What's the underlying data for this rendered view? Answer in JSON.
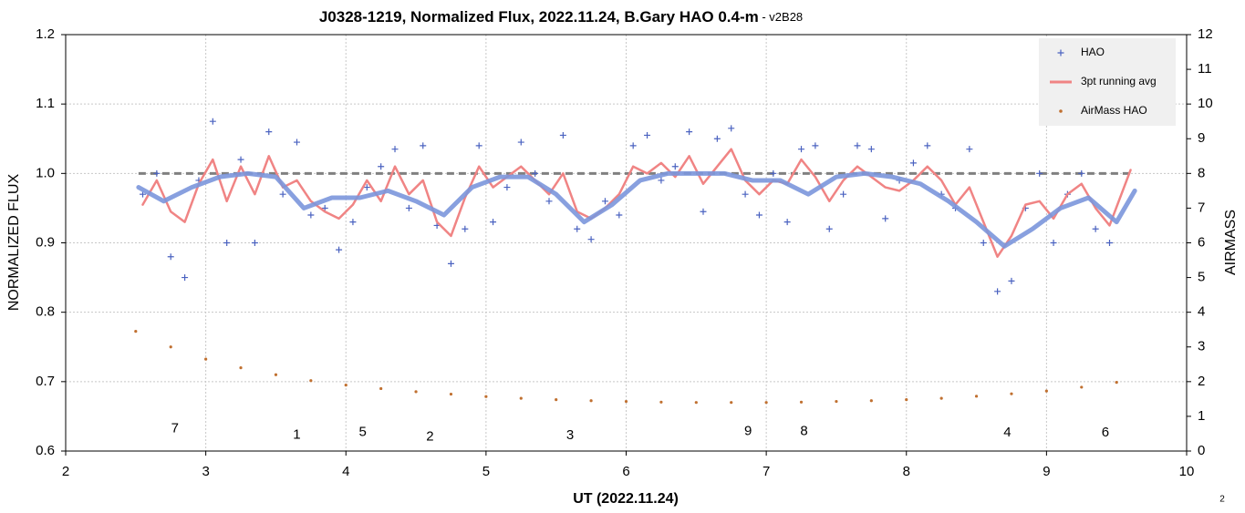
{
  "chart_data": {
    "type": "scatter",
    "title": "J0328-1219, Normalized Flux, 2022.11.24, B.Gary HAO 0.4-m",
    "subtitle": " - v2B28",
    "xlabel": "UT (2022.11.24)",
    "ylabel": "NORMALIZED FLUX",
    "y2label": "AIRMASS",
    "footnote": "2",
    "xlim": [
      2,
      10
    ],
    "xticks": [
      2,
      3,
      4,
      5,
      6,
      7,
      8,
      9,
      10
    ],
    "ylim": [
      0.6,
      1.2
    ],
    "yticks": [
      0.6,
      0.7,
      0.8,
      0.9,
      {
        "value": 1.0,
        "label": "1.0"
      },
      1.1,
      1.2
    ],
    "y2lim": [
      0,
      12
    ],
    "y2ticks": [
      0,
      1,
      2,
      3,
      4,
      5,
      6,
      7,
      8,
      9,
      10,
      11,
      12
    ],
    "grid": true,
    "legend": "upper right",
    "reference_line": {
      "value": 1.0,
      "color": "#808080"
    },
    "annotations": [
      {
        "text": "7",
        "x": 2.78,
        "y": 0.632
      },
      {
        "text": "1",
        "x": 3.65,
        "y": 0.623
      },
      {
        "text": "5",
        "x": 4.12,
        "y": 0.627
      },
      {
        "text": "2",
        "x": 4.6,
        "y": 0.62
      },
      {
        "text": "3",
        "x": 5.6,
        "y": 0.622
      },
      {
        "text": "9",
        "x": 6.87,
        "y": 0.628
      },
      {
        "text": "8",
        "x": 7.27,
        "y": 0.628
      },
      {
        "text": "4",
        "x": 8.72,
        "y": 0.626
      },
      {
        "text": "6",
        "x": 9.42,
        "y": 0.626
      }
    ],
    "series": [
      {
        "type": "line",
        "color": "#7b96dc",
        "x": [
          2.52,
          2.7,
          2.9,
          3.1,
          3.3,
          3.5,
          3.7,
          3.9,
          4.1,
          4.3,
          4.5,
          4.7,
          4.9,
          5.1,
          5.3,
          5.5,
          5.7,
          5.9,
          6.1,
          6.3,
          6.5,
          6.7,
          6.9,
          7.1,
          7.3,
          7.5,
          7.7,
          7.9,
          8.1,
          8.3,
          8.5,
          8.7,
          8.9,
          9.1,
          9.3,
          9.5,
          9.63
        ],
        "values": [
          0.98,
          0.96,
          0.98,
          0.995,
          1.0,
          0.995,
          0.95,
          0.965,
          0.965,
          0.975,
          0.96,
          0.94,
          0.98,
          0.995,
          0.995,
          0.97,
          0.93,
          0.955,
          0.99,
          1.0,
          1.0,
          1.0,
          0.99,
          0.99,
          0.97,
          0.995,
          1.0,
          0.995,
          0.985,
          0.96,
          0.93,
          0.895,
          0.92,
          0.95,
          0.965,
          0.93,
          0.975
        ]
      },
      {
        "name": "HAO",
        "type": "scatter",
        "color": "#4a62c0",
        "x": [
          2.55,
          2.65,
          2.75,
          2.85,
          2.95,
          3.05,
          3.15,
          3.25,
          3.35,
          3.45,
          3.55,
          3.65,
          3.75,
          3.85,
          3.95,
          4.05,
          4.15,
          4.25,
          4.35,
          4.45,
          4.55,
          4.65,
          4.75,
          4.85,
          4.95,
          5.05,
          5.15,
          5.25,
          5.35,
          5.45,
          5.55,
          5.65,
          5.75,
          5.85,
          5.95,
          6.05,
          6.15,
          6.25,
          6.35,
          6.45,
          6.55,
          6.65,
          6.75,
          6.85,
          6.95,
          7.05,
          7.15,
          7.25,
          7.35,
          7.45,
          7.55,
          7.65,
          7.75,
          7.85,
          7.95,
          8.05,
          8.15,
          8.25,
          8.35,
          8.45,
          8.55,
          8.65,
          8.75,
          8.85,
          8.95,
          9.05,
          9.15,
          9.25,
          9.35,
          9.45
        ],
        "values": [
          0.97,
          1.0,
          0.88,
          0.85,
          0.99,
          1.075,
          0.9,
          1.02,
          0.9,
          1.06,
          0.97,
          1.045,
          0.94,
          0.95,
          0.89,
          0.93,
          0.98,
          1.01,
          1.035,
          0.95,
          1.04,
          0.925,
          0.87,
          0.92,
          1.04,
          0.93,
          0.98,
          1.045,
          1.0,
          0.96,
          1.055,
          0.92,
          0.905,
          0.96,
          0.94,
          1.04,
          1.055,
          0.99,
          1.01,
          1.06,
          0.945,
          1.05,
          1.065,
          0.97,
          0.94,
          1.0,
          0.93,
          1.035,
          1.04,
          0.92,
          0.97,
          1.04,
          1.035,
          0.935,
          0.99,
          1.015,
          1.04,
          0.97,
          0.95,
          1.035,
          0.9,
          0.83,
          0.845,
          0.95,
          1.0,
          0.9,
          0.97,
          1.0,
          0.92,
          0.9
        ]
      },
      {
        "name": "3pt running avg",
        "type": "line",
        "color": "#f08484",
        "x": [
          2.55,
          2.65,
          2.75,
          2.85,
          2.95,
          3.05,
          3.15,
          3.25,
          3.35,
          3.45,
          3.55,
          3.65,
          3.75,
          3.85,
          3.95,
          4.05,
          4.15,
          4.25,
          4.35,
          4.45,
          4.55,
          4.65,
          4.75,
          4.85,
          4.95,
          5.05,
          5.15,
          5.25,
          5.35,
          5.45,
          5.55,
          5.65,
          5.75,
          5.85,
          5.95,
          6.05,
          6.15,
          6.25,
          6.35,
          6.45,
          6.55,
          6.65,
          6.75,
          6.85,
          6.95,
          7.05,
          7.15,
          7.25,
          7.35,
          7.45,
          7.55,
          7.65,
          7.75,
          7.85,
          7.95,
          8.05,
          8.15,
          8.25,
          8.35,
          8.45,
          8.55,
          8.65,
          8.75,
          8.85,
          8.95,
          9.05,
          9.15,
          9.25,
          9.35,
          9.45,
          9.6
        ],
        "values": [
          0.955,
          0.99,
          0.945,
          0.93,
          0.985,
          1.02,
          0.96,
          1.01,
          0.97,
          1.025,
          0.98,
          0.99,
          0.96,
          0.945,
          0.935,
          0.955,
          0.99,
          0.96,
          1.01,
          0.97,
          0.99,
          0.93,
          0.91,
          0.965,
          1.01,
          0.98,
          0.995,
          1.01,
          0.99,
          0.97,
          1.0,
          0.945,
          0.935,
          0.95,
          0.97,
          1.01,
          1.0,
          1.015,
          0.995,
          1.025,
          0.985,
          1.01,
          1.035,
          0.99,
          0.97,
          0.99,
          0.985,
          1.02,
          0.995,
          0.96,
          0.99,
          1.01,
          0.995,
          0.98,
          0.975,
          0.99,
          1.01,
          0.99,
          0.955,
          0.98,
          0.93,
          0.88,
          0.91,
          0.955,
          0.96,
          0.935,
          0.97,
          0.985,
          0.95,
          0.925,
          1.005
        ]
      },
      {
        "name": "AirMass HAO",
        "type": "scatter",
        "axis": "y2",
        "color": "#c07030",
        "x": [
          2.5,
          2.75,
          3.0,
          3.25,
          3.5,
          3.75,
          4.0,
          4.25,
          4.5,
          4.75,
          5.0,
          5.25,
          5.5,
          5.75,
          6.0,
          6.25,
          6.5,
          6.75,
          7.0,
          7.25,
          7.5,
          7.75,
          8.0,
          8.25,
          8.5,
          8.75,
          9.0,
          9.25,
          9.5
        ],
        "values": [
          3.45,
          3.0,
          2.65,
          2.4,
          2.2,
          2.03,
          1.9,
          1.8,
          1.71,
          1.64,
          1.57,
          1.52,
          1.48,
          1.45,
          1.43,
          1.41,
          1.4,
          1.4,
          1.4,
          1.41,
          1.43,
          1.45,
          1.48,
          1.52,
          1.58,
          1.65,
          1.73,
          1.84,
          1.98
        ]
      }
    ]
  }
}
